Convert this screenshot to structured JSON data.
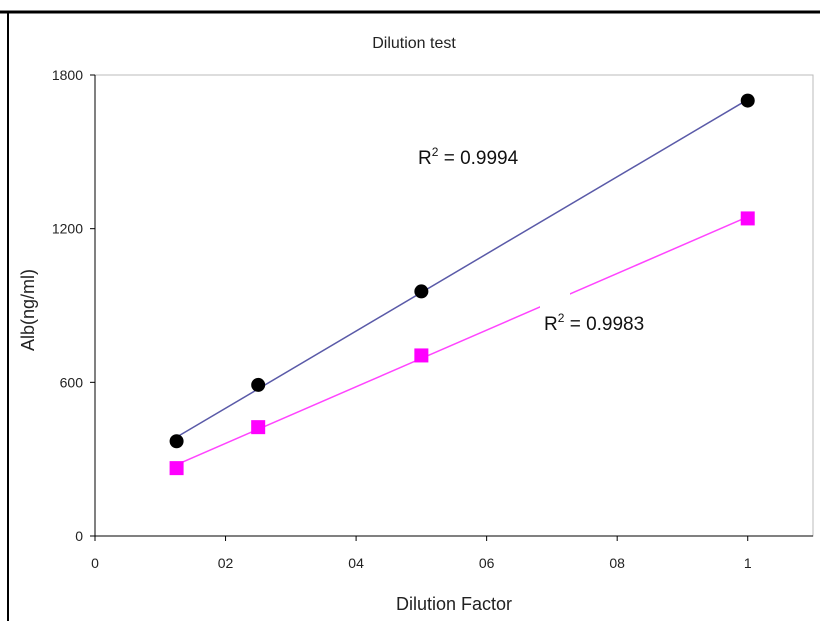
{
  "chart_data": {
    "type": "scatter",
    "title": "Dilution test",
    "xlabel": "Dilution Factor",
    "ylabel": "Alb(ng/ml)",
    "xlim": [
      0,
      1.1
    ],
    "ylim": [
      0,
      1800
    ],
    "x_ticks": [
      0,
      0.2,
      0.4,
      0.6,
      0.8,
      1
    ],
    "x_tick_labels": [
      "0",
      "02",
      "04",
      "06",
      "08",
      "1"
    ],
    "y_ticks": [
      0,
      600,
      1200,
      1800
    ],
    "y_tick_labels": [
      "0",
      "600",
      "1200",
      "1800"
    ],
    "grid": false,
    "legend": "none",
    "series": [
      {
        "marker": "circle",
        "color": "#000000",
        "line_color": "#5a5aa8",
        "x": [
          0.125,
          0.25,
          0.5,
          1.0
        ],
        "y": [
          370,
          590,
          955,
          1700
        ],
        "r2_label": "R",
        "r2_sup": "2",
        "r2_value": " = 0.9994"
      },
      {
        "marker": "square",
        "color": "#ff00ff",
        "line_color": "#ff44ff",
        "x": [
          0.125,
          0.25,
          0.5,
          1.0
        ],
        "y": [
          265,
          425,
          705,
          1240
        ],
        "r2_label": "R",
        "r2_sup": "2",
        "r2_value": " = 0.9983"
      }
    ]
  }
}
